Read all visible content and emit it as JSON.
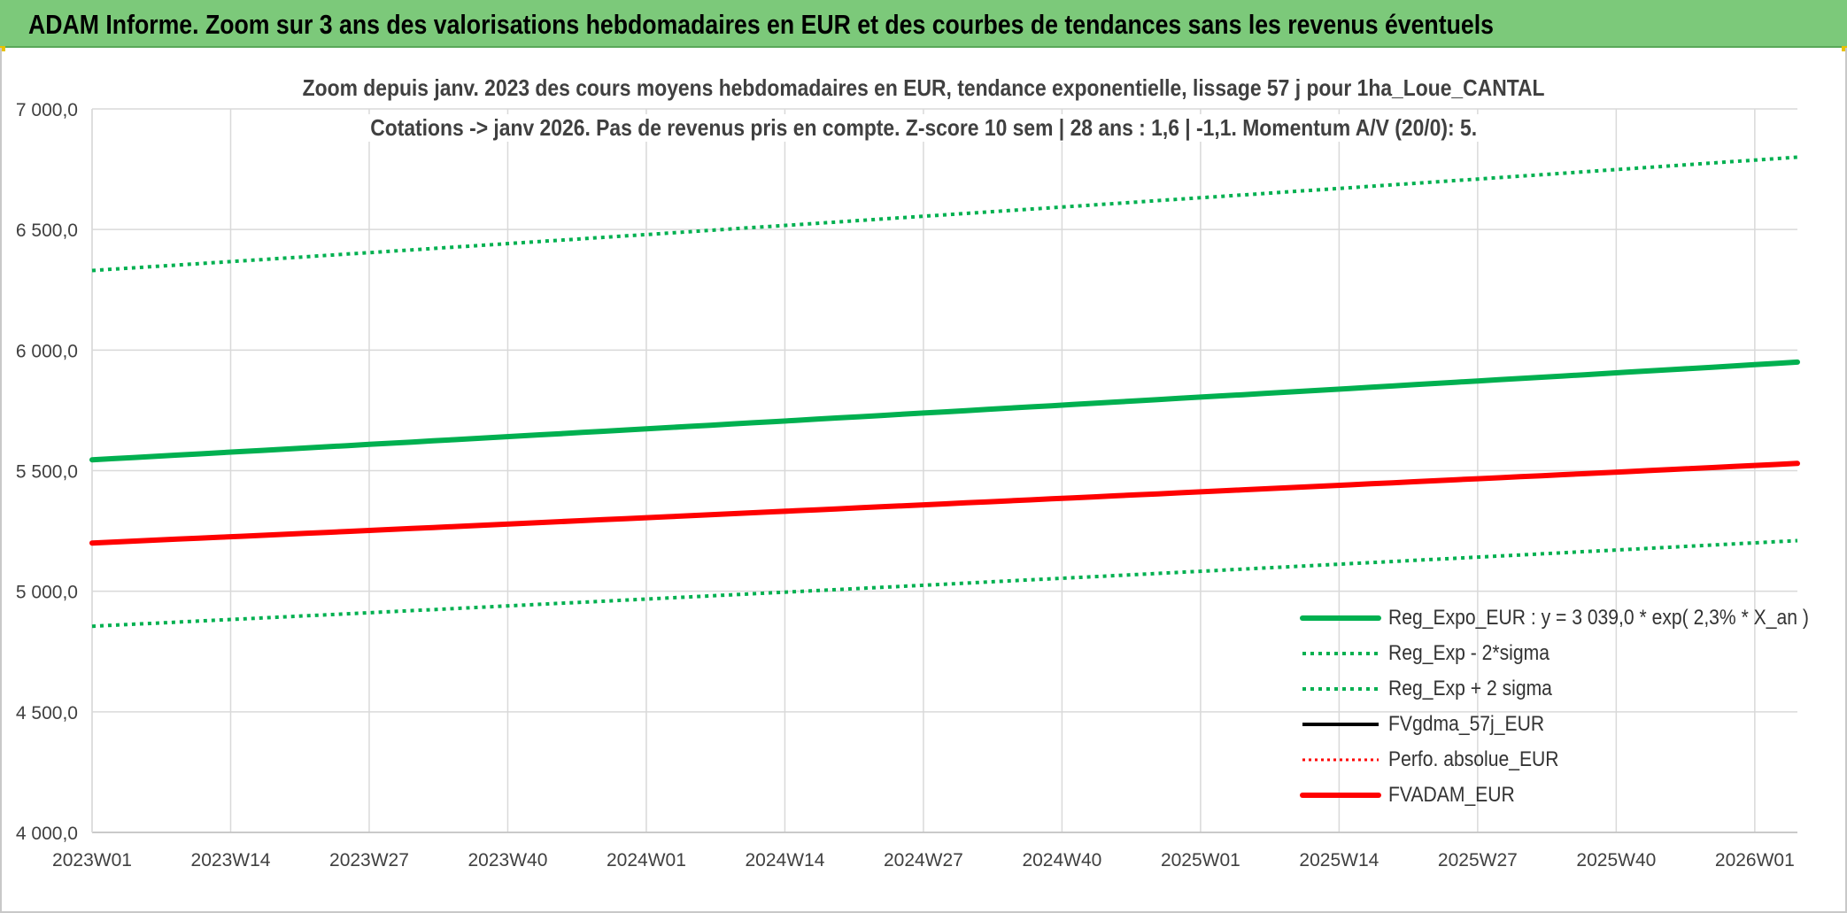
{
  "banner": {
    "title": "ADAM Informe. Zoom sur 3 ans des valorisations hebdomadaires en EUR et des courbes de tendances sans les revenus éventuels"
  },
  "chart_data": {
    "type": "line",
    "title": "Zoom depuis janv. 2023 des cours moyens hebdomadaires en EUR, tendance exponentielle, lissage 57 j pour 1ha_Loue_CANTAL",
    "subtitle": "Cotations -> janv 2026. Pas de revenus pris en compte. Z-score 10 sem | 28 ans : 1,6 | -1,1. Momentum A/V (20/0): 5.",
    "xlabel": "",
    "ylabel": "",
    "ylim": [
      4000,
      7000
    ],
    "y_ticks": [
      "4 000,0",
      "4 500,0",
      "5 000,0",
      "5 500,0",
      "6 000,0",
      "6 500,0",
      "7 000,0"
    ],
    "y_tick_values": [
      4000,
      4500,
      5000,
      5500,
      6000,
      6500,
      7000
    ],
    "x_ticks": [
      "2023W01",
      "2023W14",
      "2023W27",
      "2023W40",
      "2024W01",
      "2024W14",
      "2024W27",
      "2024W40",
      "2025W01",
      "2025W14",
      "2025W27",
      "2025W40",
      "2026W01"
    ],
    "x_tick_index": [
      0,
      13,
      26,
      39,
      52,
      65,
      78,
      91,
      104,
      117,
      130,
      143,
      156
    ],
    "x_range": [
      0,
      160
    ],
    "grid": true,
    "legend_position": "bottom-right",
    "series": [
      {
        "name": "Reg_Expo_EUR : y = 3 039,0 * exp( 2,3% *  X_an )",
        "style": "solid-thick",
        "color": "#00b050",
        "x": [
          0,
          160
        ],
        "y": [
          5545,
          5950
        ]
      },
      {
        "name": "Reg_Exp - 2*sigma",
        "style": "dotted",
        "color": "#00b050",
        "x": [
          0,
          160
        ],
        "y": [
          4855,
          5210
        ]
      },
      {
        "name": "Reg_Exp + 2 sigma",
        "style": "dotted",
        "color": "#00b050",
        "x": [
          0,
          160
        ],
        "y": [
          6330,
          6800
        ]
      },
      {
        "name": "FVgdma_57j_EUR",
        "style": "solid",
        "color": "#000000",
        "x": [],
        "y": []
      },
      {
        "name": "Perfo. absolue_EUR",
        "style": "dotted-thin",
        "color": "#ff0000",
        "x": [],
        "y": []
      },
      {
        "name": "FVADAM_EUR",
        "style": "solid-thick",
        "color": "#ff0000",
        "x": [
          0,
          160
        ],
        "y": [
          5200,
          5530
        ]
      }
    ]
  }
}
